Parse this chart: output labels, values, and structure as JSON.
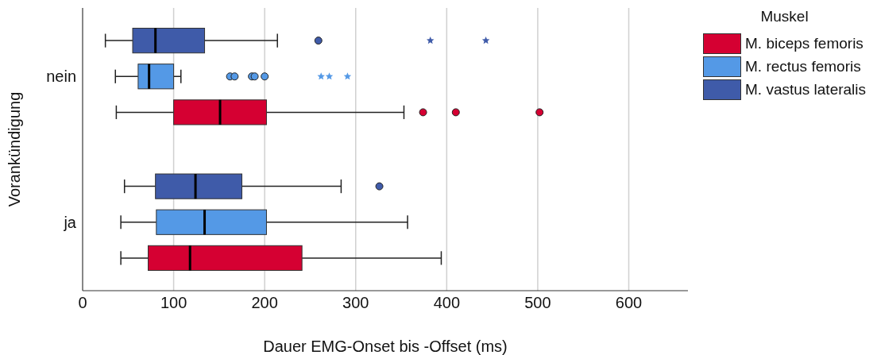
{
  "chart_data": {
    "type": "box",
    "orientation": "horizontal",
    "xlabel": "Dauer EMG-Onset bis -Offset (ms)",
    "ylabel": "Vorankündigung",
    "legend_title": "Muskel",
    "legend": "right",
    "grid": "x",
    "categories": [
      "nein",
      "ja"
    ],
    "xlim": [
      0,
      665
    ],
    "xticks": [
      0,
      100,
      200,
      300,
      400,
      500,
      600
    ],
    "series": [
      {
        "name": "M. biceps femoris",
        "color": "#d50032",
        "boxes": [
          {
            "low": 37,
            "q1": 100,
            "median": 151,
            "q3": 202,
            "high": 353,
            "outliers": [
              374,
              410,
              502
            ]
          },
          {
            "low": 42,
            "q1": 72,
            "median": 118,
            "q3": 241,
            "high": 394
          }
        ]
      },
      {
        "name": "M. rectus femoris",
        "color": "#5499e6",
        "boxes": [
          {
            "low": 36,
            "q1": 61,
            "median": 73,
            "q3": 100,
            "high": 108,
            "outliers": [
              162,
              167,
              186,
              189,
              200,
              262,
              271,
              291
            ]
          },
          {
            "low": 42,
            "q1": 81,
            "median": 134,
            "q3": 202,
            "high": 357
          }
        ]
      },
      {
        "name": "M. vastus lateralis",
        "color": "#3f5ba9",
        "boxes": [
          {
            "low": 25,
            "q1": 55,
            "median": 80,
            "q3": 134,
            "high": 214,
            "outliers": [
              259,
              382,
              443
            ]
          },
          {
            "low": 46,
            "q1": 80,
            "median": 124,
            "q3": 175,
            "high": 284,
            "outliers": [
              326
            ]
          }
        ]
      }
    ]
  }
}
